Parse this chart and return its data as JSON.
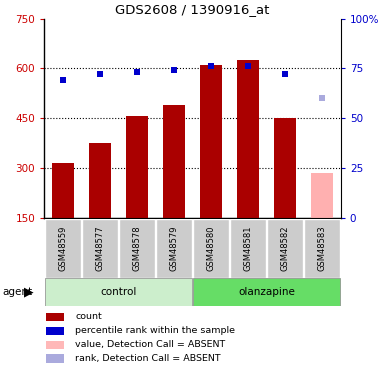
{
  "title": "GDS2608 / 1390916_at",
  "samples": [
    "GSM48559",
    "GSM48577",
    "GSM48578",
    "GSM48579",
    "GSM48580",
    "GSM48581",
    "GSM48582",
    "GSM48583"
  ],
  "bar_values": [
    315,
    375,
    455,
    490,
    610,
    625,
    450,
    null
  ],
  "bar_absent_value": 285,
  "bar_colors": [
    "#aa0000",
    "#aa0000",
    "#aa0000",
    "#aa0000",
    "#aa0000",
    "#aa0000",
    "#aa0000",
    "#ffb0b0"
  ],
  "rank_values": [
    69,
    72,
    73,
    74,
    76,
    76,
    72,
    null
  ],
  "rank_absent_value": 60,
  "rank_colors": [
    "#0000cc",
    "#0000cc",
    "#0000cc",
    "#0000cc",
    "#0000cc",
    "#0000cc",
    "#0000cc",
    "#aaaadd"
  ],
  "control_indices": [
    0,
    1,
    2,
    3
  ],
  "olanzapine_indices": [
    4,
    5,
    6,
    7
  ],
  "ylim_left": [
    150,
    750
  ],
  "ylim_right": [
    0,
    100
  ],
  "yticks_left": [
    150,
    300,
    450,
    600,
    750
  ],
  "yticks_right": [
    0,
    25,
    50,
    75,
    100
  ],
  "gridlines": [
    300,
    450,
    600
  ],
  "left_tick_color": "#cc0000",
  "right_tick_color": "#0000cc",
  "control_color_light": "#cceecc",
  "control_color_dark": "#66cc66",
  "olanzapine_color_light": "#66dd66",
  "olanzapine_color_dark": "#44bb44",
  "sample_bg": "#cccccc",
  "bar_width": 0.6,
  "legend_items": [
    {
      "label": "count",
      "color": "#aa0000"
    },
    {
      "label": "percentile rank within the sample",
      "color": "#0000cc"
    },
    {
      "label": "value, Detection Call = ABSENT",
      "color": "#ffb8b8"
    },
    {
      "label": "rank, Detection Call = ABSENT",
      "color": "#aaaadd"
    }
  ]
}
